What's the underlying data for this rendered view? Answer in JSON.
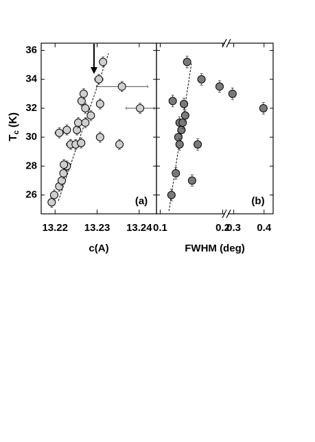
{
  "chart_data": [
    {
      "type": "scatter",
      "panel_label": "(a)",
      "xlabel": "c(A)",
      "ylabel": "T",
      "ylabel_sub": "c",
      "ylabel_unit": "(K)",
      "color": "#cfcfcf",
      "xlim": [
        13.2167,
        13.2441
      ],
      "xticks": [
        13.22,
        13.23,
        13.24
      ],
      "ylim": [
        24.7,
        36.5
      ],
      "yticks": [
        26,
        28,
        30,
        32,
        34,
        36
      ],
      "x": [
        13.2192,
        13.2198,
        13.221,
        13.2216,
        13.222,
        13.2228,
        13.2221,
        13.2228,
        13.221,
        13.2237,
        13.2249,
        13.2262,
        13.2252,
        13.2255,
        13.2272,
        13.2285,
        13.2263,
        13.2268,
        13.2272,
        13.2307,
        13.2307,
        13.2304,
        13.2314,
        13.2359,
        13.2402,
        13.2353
      ],
      "values": [
        25.5,
        26.0,
        26.6,
        27.0,
        27.5,
        28.0,
        28.1,
        30.5,
        30.3,
        29.5,
        29.5,
        29.6,
        30.5,
        31.0,
        31.0,
        31.5,
        32.5,
        33.0,
        32.0,
        30.0,
        32.3,
        34.0,
        35.2,
        33.5,
        32.0,
        29.5
      ],
      "xerr": [
        0.0008,
        0.0007,
        0.0008,
        0.0007,
        0.0007,
        0.0008,
        0.0007,
        0.0007,
        0.001,
        0.001,
        0.0007,
        0.0008,
        0.0007,
        0.0007,
        0.0007,
        0.0007,
        0.0005,
        0.0005,
        0.0007,
        0.0005,
        0.0005,
        0.001,
        0.0005,
        0.0061,
        0.0033,
        0.0005
      ],
      "yerr": [
        0.35,
        0.35,
        0.35,
        0.35,
        0.35,
        0.35,
        0.35,
        0.35,
        0.35,
        0.35,
        0.35,
        0.35,
        0.35,
        0.35,
        0.35,
        0.35,
        0.35,
        0.35,
        0.35,
        0.35,
        0.35,
        0.35,
        0.35,
        0.35,
        0.35,
        0.35
      ],
      "fit": {
        "x": [
          13.2208,
          13.2327
        ],
        "y": [
          25.6,
          35.8
        ]
      }
    },
    {
      "type": "scatter",
      "panel_label": "(b)",
      "xlabel": "FWHM (deg)",
      "color": "#7a7a7a",
      "xlim": [
        0.094,
        0.43
      ],
      "xbreak": [
        0.206,
        0.276
      ],
      "xticks": [
        0.1,
        0.2,
        0.3,
        0.4
      ],
      "ylim": [
        24.7,
        36.5
      ],
      "yticks": [
        26,
        28,
        30,
        32,
        34,
        36
      ],
      "ytick_labels": false,
      "x": [
        0.118,
        0.125,
        0.12,
        0.131,
        0.129,
        0.131,
        0.134,
        0.136,
        0.138,
        0.14,
        0.143,
        0.151,
        0.16,
        0.166,
        0.195,
        0.296,
        0.398
      ],
      "values": [
        26.0,
        27.5,
        32.5,
        31.0,
        30.0,
        29.5,
        30.5,
        31.0,
        32.3,
        31.5,
        35.2,
        27.0,
        29.5,
        34.0,
        33.5,
        33.0,
        32.0
      ],
      "yerr": [
        0.4,
        0.4,
        0.4,
        0.4,
        0.4,
        0.4,
        0.4,
        0.4,
        0.4,
        0.4,
        0.4,
        0.4,
        0.4,
        0.4,
        0.4,
        0.4,
        0.4
      ],
      "fit": {
        "x": [
          0.114,
          0.15
        ],
        "y": [
          24.9,
          35.1
        ]
      }
    }
  ]
}
